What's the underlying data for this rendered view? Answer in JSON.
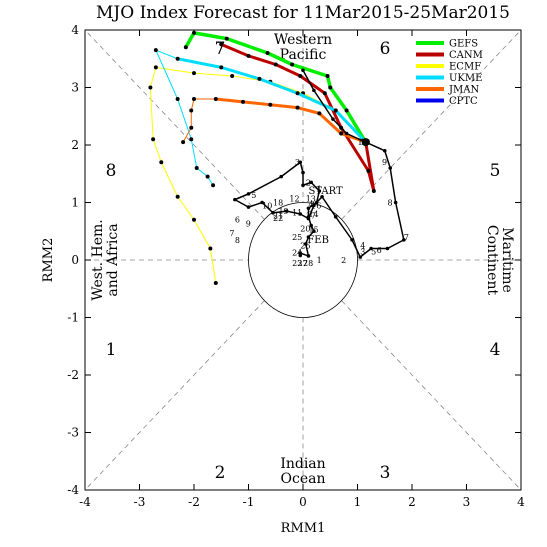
{
  "chart_data": {
    "type": "line",
    "title": "MJO Index Forecast for 11Mar2015-25Mar2015",
    "xlabel": "RMM1",
    "ylabel": "RMM2",
    "xlim": [
      -4,
      4
    ],
    "ylim": [
      -4,
      4
    ],
    "xticks": [
      "-4",
      "-3",
      "-2",
      "-1",
      "0",
      "1",
      "2",
      "3",
      "4"
    ],
    "yticks": [
      "-4",
      "-3",
      "-2",
      "-1",
      "0",
      "1",
      "2",
      "3",
      "4"
    ],
    "phases": [
      "1",
      "2",
      "3",
      "4",
      "5",
      "6",
      "7",
      "8"
    ],
    "regions": {
      "western_pacific": [
        "Western",
        "Pacific"
      ],
      "indian_ocean": [
        "Indian",
        "Ocean"
      ],
      "west_hem": [
        "West. Hem.",
        "and Africa"
      ],
      "maritime": [
        "Maritime",
        "Continent"
      ]
    },
    "legend_position": "top-right",
    "observed": {
      "start_label": "START",
      "end_label": "FEB",
      "points": [
        [
          -0.05,
          0.08
        ],
        [
          -0.05,
          0.12
        ],
        [
          0.1,
          0.07
        ],
        [
          0.05,
          0.28
        ],
        [
          0.1,
          0.4
        ],
        [
          0.2,
          0.5
        ],
        [
          0.15,
          0.6
        ],
        [
          0.1,
          0.75
        ],
        [
          0.1,
          0.9
        ],
        [
          0.25,
          1.0
        ],
        [
          0.3,
          1.2
        ],
        [
          0.15,
          1.35
        ],
        [
          0.0,
          1.3
        ],
        [
          0.0,
          1.52
        ],
        [
          -0.05,
          1.7
        ],
        [
          -0.4,
          1.45
        ],
        [
          -1.0,
          1.15
        ],
        [
          -1.25,
          1.05
        ],
        [
          -1.0,
          0.92
        ],
        [
          -0.75,
          1.0
        ],
        [
          -0.55,
          0.82
        ],
        [
          -0.3,
          0.85
        ],
        [
          -0.05,
          0.8
        ],
        [
          0.1,
          0.72
        ],
        [
          0.2,
          0.95
        ],
        [
          0.35,
          1.1
        ],
        [
          0.6,
          0.75
        ],
        [
          0.9,
          0.35
        ],
        [
          1.05,
          0.05
        ],
        [
          1.25,
          0.2
        ],
        [
          1.55,
          0.2
        ],
        [
          1.85,
          0.35
        ],
        [
          1.7,
          1.0
        ],
        [
          1.6,
          1.6
        ],
        [
          1.5,
          1.9
        ],
        [
          1.15,
          2.05
        ],
        [
          0.8,
          2.2
        ],
        [
          0.55,
          2.45
        ],
        [
          0.2,
          2.95
        ],
        [
          0.0,
          3.3
        ]
      ],
      "labels": [
        {
          "text": "1",
          "x": 0.25,
          "y": 1.18
        },
        {
          "text": "2",
          "x": 0.05,
          "y": 1.3
        },
        {
          "text": "3",
          "x": -0.15,
          "y": 1.65
        },
        {
          "text": "4",
          "x": 0.1,
          "y": 0.92
        },
        {
          "text": "5",
          "x": -0.95,
          "y": 1.08
        },
        {
          "text": "6",
          "x": -1.25,
          "y": 0.65
        },
        {
          "text": "7",
          "x": -1.35,
          "y": 0.42
        },
        {
          "text": "8",
          "x": -1.25,
          "y": 0.3
        },
        {
          "text": "9",
          "x": -1.05,
          "y": 0.58
        },
        {
          "text": "10",
          "x": -0.75,
          "y": 0.9
        },
        {
          "text": "11",
          "x": -0.2,
          "y": 0.77
        },
        {
          "text": "12",
          "x": -0.25,
          "y": 1.02
        },
        {
          "text": "13",
          "x": 0.05,
          "y": 1.02
        },
        {
          "text": "14",
          "x": 0.1,
          "y": 0.75
        },
        {
          "text": "15",
          "x": 0.1,
          "y": 0.48
        },
        {
          "text": "16",
          "x": 0.15,
          "y": 0.9
        },
        {
          "text": "17",
          "x": 0.05,
          "y": 0.72
        },
        {
          "text": "18",
          "x": -0.55,
          "y": 0.95
        },
        {
          "text": "19",
          "x": -0.45,
          "y": 0.8
        },
        {
          "text": "20",
          "x": -0.05,
          "y": 0.5
        },
        {
          "text": "21",
          "x": -0.55,
          "y": 0.72
        },
        {
          "text": "22",
          "x": -0.55,
          "y": 0.68
        },
        {
          "text": "23",
          "x": -0.2,
          "y": -0.1
        },
        {
          "text": "24",
          "x": -0.2,
          "y": 0.08
        },
        {
          "text": "25",
          "x": -0.2,
          "y": 0.35
        },
        {
          "text": "26",
          "x": -0.05,
          "y": 0.2
        },
        {
          "text": "27",
          "x": -0.1,
          "y": -0.1
        },
        {
          "text": "28",
          "x": 0.0,
          "y": -0.1
        },
        {
          "text": "1",
          "x": 0.25,
          "y": -0.05
        },
        {
          "text": "2",
          "x": 0.7,
          "y": -0.05
        },
        {
          "text": "3",
          "x": 1.05,
          "y": 0.1
        },
        {
          "text": "4",
          "x": 1.05,
          "y": 0.2
        },
        {
          "text": "5",
          "x": 1.25,
          "y": 0.1
        },
        {
          "text": "6",
          "x": 1.35,
          "y": 0.12
        },
        {
          "text": "7",
          "x": 1.85,
          "y": 0.35
        },
        {
          "text": "8",
          "x": 1.55,
          "y": 0.95
        },
        {
          "text": "9",
          "x": 1.45,
          "y": 1.65
        },
        {
          "text": "10",
          "x": 1.05,
          "y": 2.0
        },
        {
          "text": "11",
          "x": 1.0,
          "y": 2.0
        }
      ]
    },
    "forecast_start": [
      1.15,
      2.05
    ],
    "series": [
      {
        "name": "GEFS",
        "color": "#00ee00",
        "points": [
          [
            1.15,
            2.05
          ],
          [
            0.8,
            2.6
          ],
          [
            0.5,
            3.0
          ],
          [
            0.45,
            3.2
          ],
          [
            -0.2,
            3.4
          ],
          [
            -0.65,
            3.6
          ],
          [
            -1.4,
            3.85
          ],
          [
            -2.0,
            3.95
          ],
          [
            -2.15,
            3.7
          ]
        ]
      },
      {
        "name": "CANM",
        "color": "#bb0000",
        "points": [
          [
            1.15,
            2.05
          ],
          [
            1.3,
            1.2
          ],
          [
            1.2,
            1.55
          ],
          [
            0.7,
            2.3
          ],
          [
            0.4,
            2.9
          ],
          [
            -0.05,
            3.2
          ],
          [
            -0.5,
            3.4
          ],
          [
            -1.0,
            3.55
          ],
          [
            -1.5,
            3.75
          ]
        ]
      },
      {
        "name": "ECMF",
        "color": "#ffff00",
        "points": [
          [
            1.15,
            2.05
          ],
          [
            0.6,
            2.6
          ],
          [
            0.0,
            2.9
          ],
          [
            -0.6,
            3.1
          ],
          [
            -1.3,
            3.2
          ],
          [
            -2.0,
            3.25
          ],
          [
            -2.7,
            3.35
          ],
          [
            -2.8,
            3.0
          ],
          [
            -2.75,
            2.1
          ],
          [
            -2.6,
            1.7
          ],
          [
            -2.3,
            1.1
          ],
          [
            -2.0,
            0.7
          ],
          [
            -1.7,
            0.2
          ],
          [
            -1.6,
            -0.4
          ]
        ]
      },
      {
        "name": "UKME",
        "color": "#00ddff",
        "points": [
          [
            1.15,
            2.05
          ],
          [
            0.6,
            2.6
          ],
          [
            -0.1,
            2.9
          ],
          [
            -0.8,
            3.15
          ],
          [
            -1.5,
            3.35
          ],
          [
            -2.3,
            3.5
          ],
          [
            -2.7,
            3.65
          ],
          [
            -2.3,
            2.8
          ],
          [
            -2.05,
            2.1
          ],
          [
            -1.95,
            1.6
          ],
          [
            -1.75,
            1.45
          ],
          [
            -1.65,
            1.3
          ]
        ]
      },
      {
        "name": "JMAN",
        "color": "#ff6600",
        "points": [
          [
            1.15,
            2.05
          ],
          [
            0.7,
            2.2
          ],
          [
            0.3,
            2.55
          ],
          [
            -0.1,
            2.65
          ],
          [
            -0.6,
            2.7
          ],
          [
            -1.1,
            2.75
          ],
          [
            -1.6,
            2.8
          ],
          [
            -2.0,
            2.8
          ],
          [
            -2.05,
            2.6
          ],
          [
            -2.05,
            2.3
          ],
          [
            -2.2,
            2.05
          ]
        ]
      },
      {
        "name": "CPTC",
        "color": "#0000ee",
        "points": []
      }
    ]
  }
}
